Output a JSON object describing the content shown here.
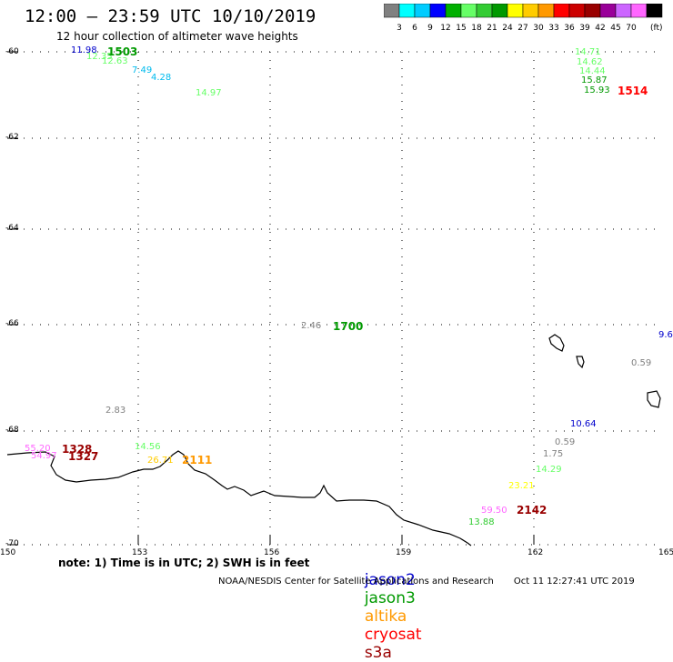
{
  "header": {
    "title": "12:00 – 23:59 UTC 10/10/2019",
    "subtitle": "12 hour collection of altimeter wave heights"
  },
  "legend": {
    "unit": "(ft)",
    "colors": [
      "#808080",
      "#00ffff",
      "#00ccff",
      "#0000ff",
      "#00b000",
      "#66ff66",
      "#33cc33",
      "#009900",
      "#ffff00",
      "#ffcc00",
      "#ff9900",
      "#ff0000",
      "#cc0000",
      "#990000",
      "#990099",
      "#cc66ff",
      "#ff66ff",
      "#000000"
    ],
    "ticks": [
      "3",
      "6",
      "9",
      "12",
      "15",
      "18",
      "21",
      "24",
      "27",
      "30",
      "33",
      "36",
      "39",
      "42",
      "45",
      "70"
    ]
  },
  "map": {
    "lat_labels": [
      "-60",
      "-62",
      "-64",
      "-66",
      "-68",
      "-70"
    ],
    "lon_labels": [
      "150",
      "153",
      "156",
      "159",
      "162",
      "165"
    ]
  },
  "observations": [
    {
      "text": "11.98",
      "color": "#0000cc"
    },
    {
      "text": "12.35",
      "color": "#66ff66"
    },
    {
      "text": "12.63",
      "color": "#66ff66"
    },
    {
      "text": "7.49",
      "color": "#00bbee"
    },
    {
      "text": "4.28",
      "color": "#00bbee"
    },
    {
      "text": "14.97",
      "color": "#66ff66"
    },
    {
      "text": "14.71",
      "color": "#66ff66"
    },
    {
      "text": "14.62",
      "color": "#66ff66"
    },
    {
      "text": "14.44",
      "color": "#66ff66"
    },
    {
      "text": "15.87",
      "color": "#009900"
    },
    {
      "text": "15.93",
      "color": "#009900"
    },
    {
      "text": "2.46",
      "color": "#808080"
    },
    {
      "text": "9.6",
      "color": "#0000cc"
    },
    {
      "text": "0.59",
      "color": "#808080"
    },
    {
      "text": "2.83",
      "color": "#808080"
    },
    {
      "text": "10.64",
      "color": "#0000cc"
    },
    {
      "text": "55.20",
      "color": "#ff66ff"
    },
    {
      "text": "54.97",
      "color": "#ff66ff"
    },
    {
      "text": "14.56",
      "color": "#66ff66"
    },
    {
      "text": "26.71",
      "color": "#ffcc00"
    },
    {
      "text": "0.59",
      "color": "#808080"
    },
    {
      "text": "1.75",
      "color": "#808080"
    },
    {
      "text": "14.29",
      "color": "#66ff66"
    },
    {
      "text": "23.21",
      "color": "#ffff00"
    },
    {
      "text": "59.50",
      "color": "#ff66ff"
    },
    {
      "text": "13.88",
      "color": "#33cc33"
    }
  ],
  "pass_times": [
    {
      "text": "1503",
      "color": "#009900"
    },
    {
      "text": "1514",
      "color": "#ff0000"
    },
    {
      "text": "1700",
      "color": "#009900"
    },
    {
      "text": "1328",
      "color": "#990000"
    },
    {
      "text": "1327",
      "color": "#990000"
    },
    {
      "text": "2111",
      "color": "#ff9900"
    },
    {
      "text": "2142",
      "color": "#990000"
    }
  ],
  "footer": {
    "note": "note: 1) Time is in UTC; 2) SWH is in feet",
    "satellites": [
      {
        "name": "jason2",
        "color": "#0000cc"
      },
      {
        "name": "jason3",
        "color": "#009900"
      },
      {
        "name": "altika",
        "color": "#ff9900"
      },
      {
        "name": "cryosat",
        "color": "#ff0000"
      },
      {
        "name": "s3a",
        "color": "#990000"
      }
    ],
    "credit": "NOAA/NESDIS Center for Satellite Applications and Research",
    "timestamp": "Oct 11 12:27:41 UTC 2019"
  }
}
